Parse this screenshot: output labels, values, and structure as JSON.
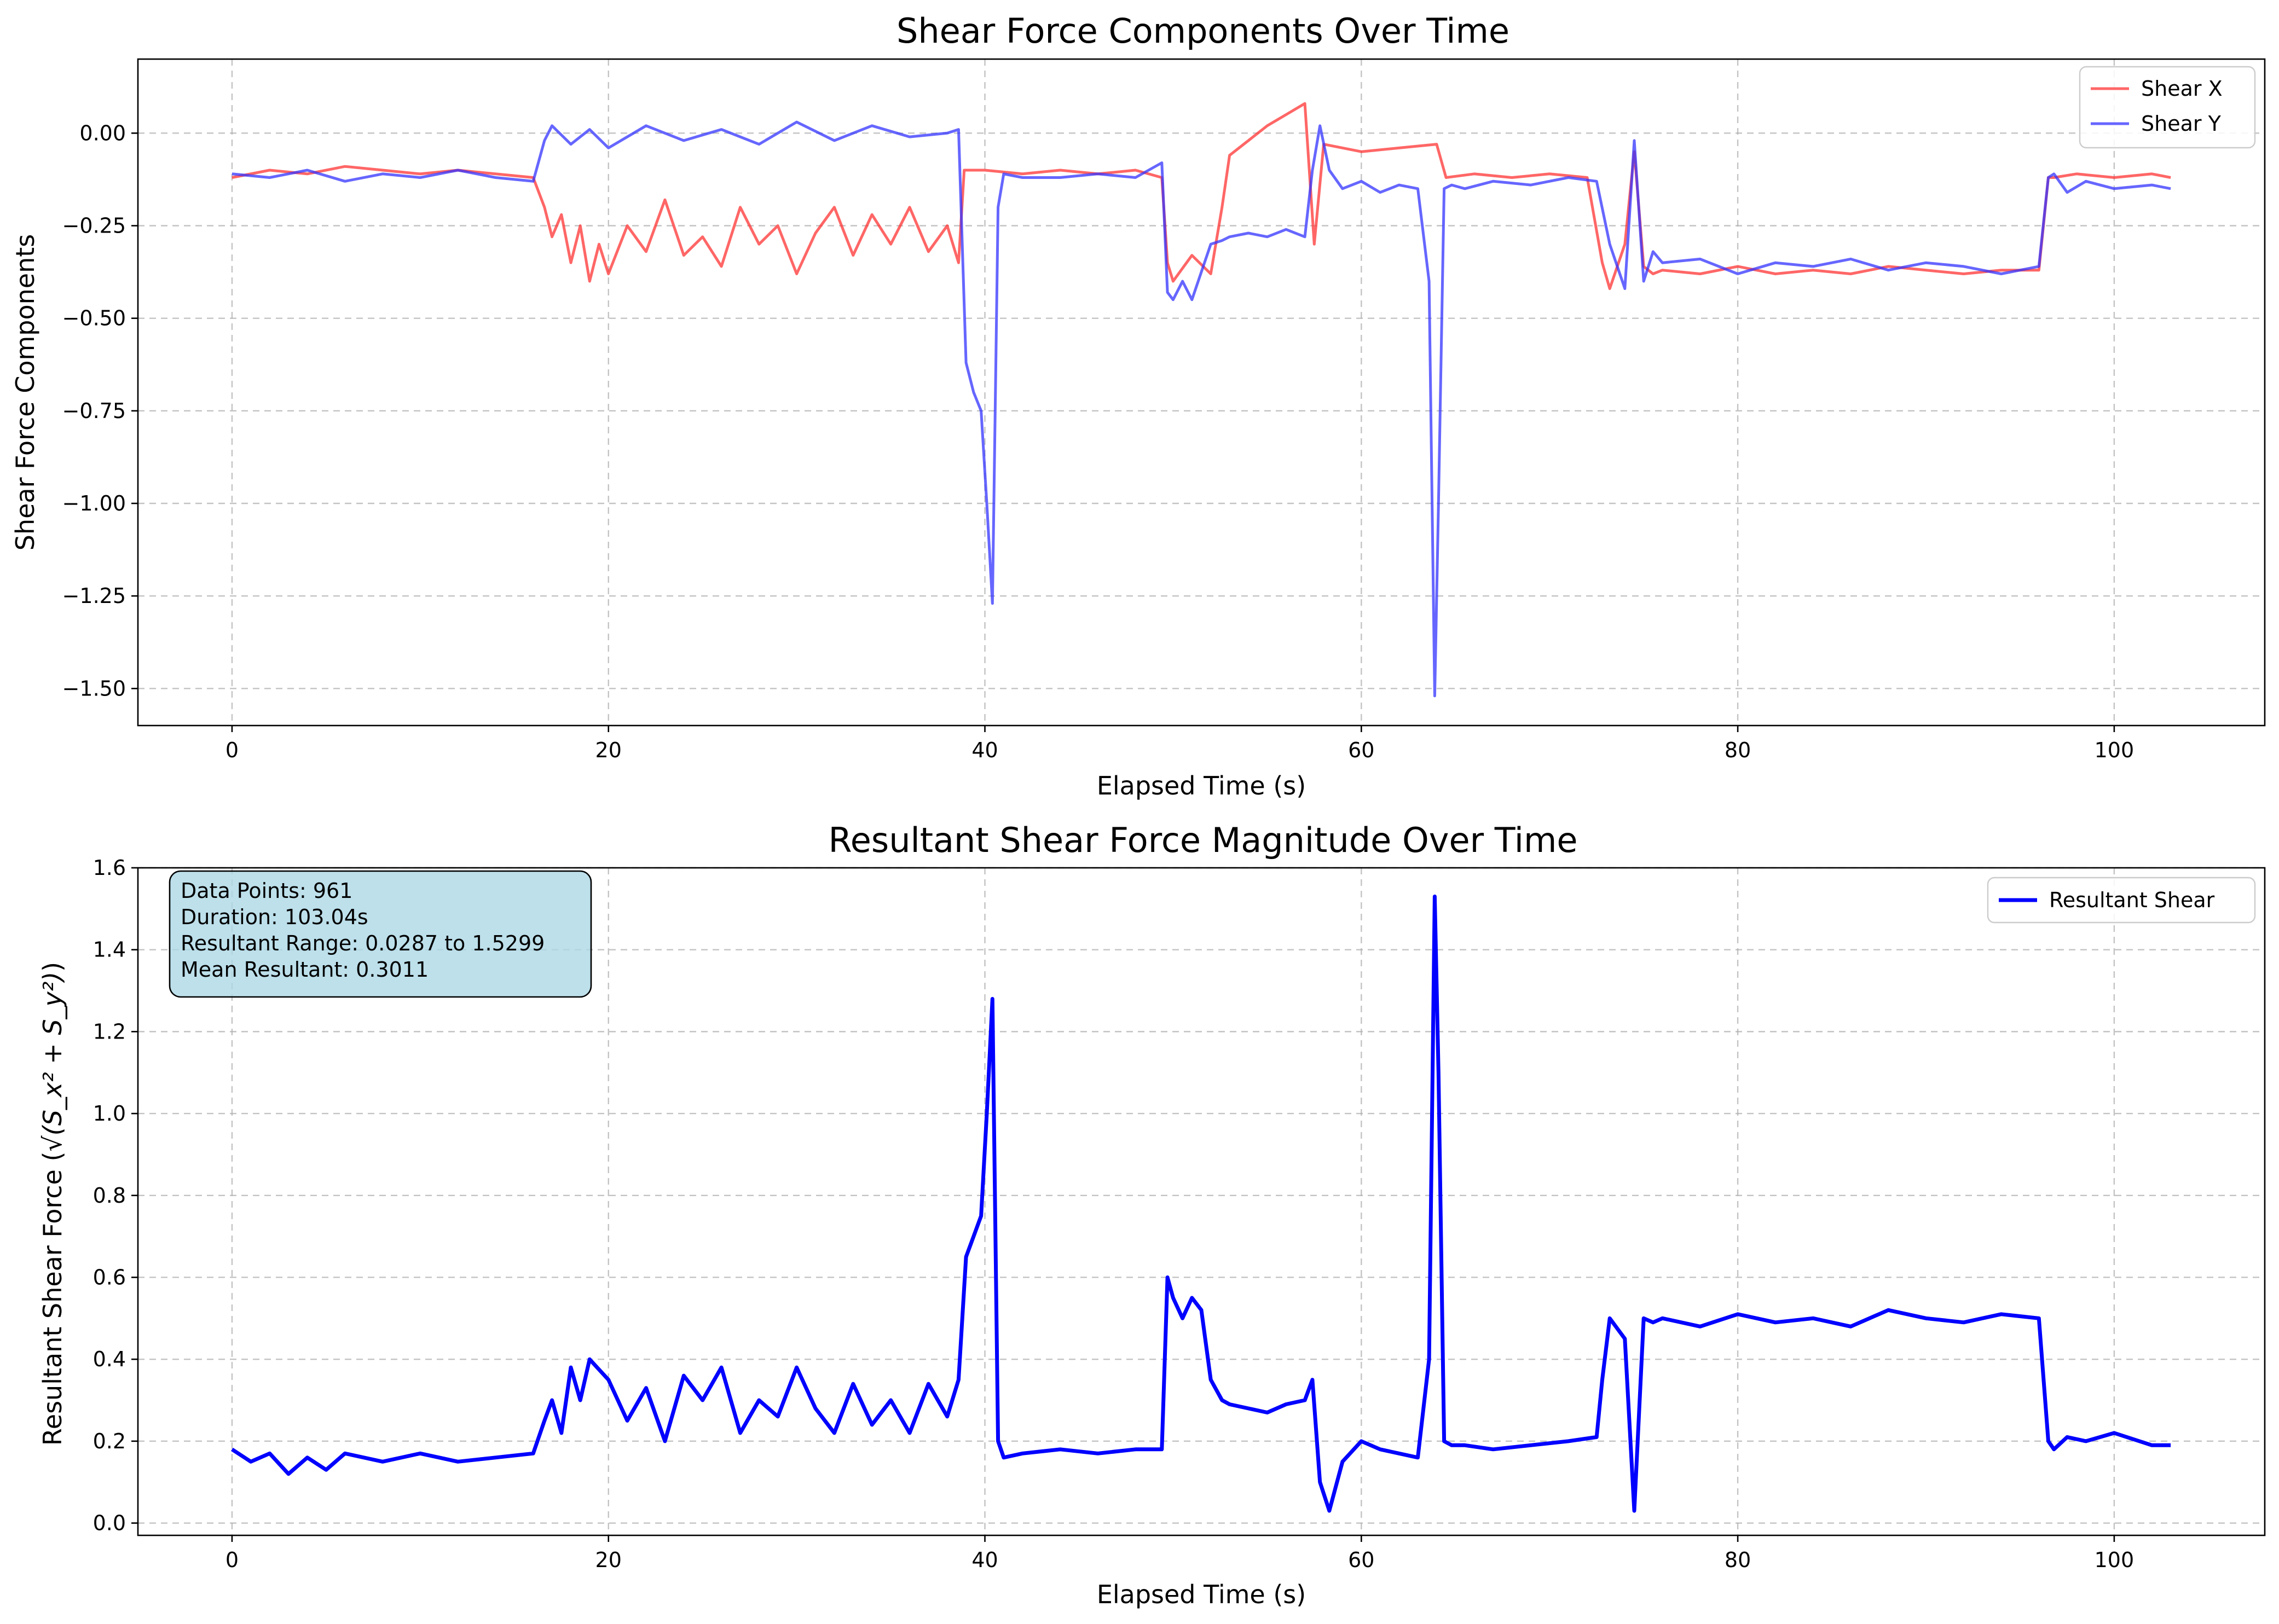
{
  "chart_data": [
    {
      "type": "line",
      "title": "Shear Force Components Over Time",
      "xlabel": "Elapsed Time (s)",
      "ylabel": "Shear Force Components",
      "xlim": [
        -5,
        108
      ],
      "ylim": [
        -1.6,
        0.2
      ],
      "xticks": [
        0,
        20,
        40,
        60,
        80,
        100
      ],
      "xtick_labels": [
        "0",
        "20",
        "40",
        "60",
        "80",
        "100"
      ],
      "yticks": [
        0.0,
        -0.25,
        -0.5,
        -0.75,
        -1.0,
        -1.25,
        -1.5
      ],
      "ytick_labels": [
        "0.00",
        "−0.25",
        "−0.50",
        "−0.75",
        "−1.00",
        "−1.25",
        "−1.50"
      ],
      "grid": true,
      "legend_position": "top-right",
      "series": [
        {
          "name": "Shear X",
          "color": "#ff3333",
          "x": [
            0,
            2,
            4,
            6,
            8,
            10,
            12,
            14,
            16,
            16.6,
            17,
            17.5,
            18,
            18.5,
            19,
            19.5,
            20,
            21,
            22,
            23,
            24,
            25,
            26,
            27,
            28,
            29,
            30,
            31,
            32,
            33,
            34,
            35,
            36,
            37,
            38,
            38.6,
            38.9,
            40,
            42,
            44,
            46,
            48,
            49.4,
            49.7,
            50,
            51,
            52,
            52.6,
            53,
            54,
            55,
            56,
            57,
            57.5,
            58,
            60,
            62,
            64,
            64.5,
            66,
            68,
            70,
            72,
            72.8,
            73.2,
            74,
            74.5,
            75,
            75.5,
            76,
            78,
            80,
            82,
            84,
            86,
            88,
            90,
            92,
            94,
            96,
            96.5,
            96.8,
            98,
            100,
            102,
            103
          ],
          "y": [
            -0.12,
            -0.1,
            -0.11,
            -0.09,
            -0.1,
            -0.11,
            -0.1,
            -0.11,
            -0.12,
            -0.2,
            -0.28,
            -0.22,
            -0.35,
            -0.25,
            -0.4,
            -0.3,
            -0.38,
            -0.25,
            -0.32,
            -0.18,
            -0.33,
            -0.28,
            -0.36,
            -0.2,
            -0.3,
            -0.25,
            -0.38,
            -0.27,
            -0.2,
            -0.33,
            -0.22,
            -0.3,
            -0.2,
            -0.32,
            -0.25,
            -0.35,
            -0.1,
            -0.1,
            -0.11,
            -0.1,
            -0.11,
            -0.1,
            -0.12,
            -0.35,
            -0.4,
            -0.33,
            -0.38,
            -0.2,
            -0.06,
            -0.02,
            0.02,
            0.05,
            0.08,
            -0.3,
            -0.03,
            -0.05,
            -0.04,
            -0.03,
            -0.12,
            -0.11,
            -0.12,
            -0.11,
            -0.12,
            -0.35,
            -0.42,
            -0.3,
            -0.05,
            -0.36,
            -0.38,
            -0.37,
            -0.38,
            -0.36,
            -0.38,
            -0.37,
            -0.38,
            -0.36,
            -0.37,
            -0.38,
            -0.37,
            -0.37,
            -0.12,
            -0.12,
            -0.11,
            -0.12,
            -0.11,
            -0.12
          ]
        },
        {
          "name": "Shear Y",
          "color": "#3333ff",
          "x": [
            0,
            2,
            4,
            6,
            8,
            10,
            12,
            14,
            16,
            16.6,
            17,
            18,
            19,
            20,
            22,
            24,
            26,
            28,
            30,
            32,
            34,
            36,
            38,
            38.6,
            39,
            39.4,
            39.8,
            40.1,
            40.4,
            40.7,
            41,
            42,
            44,
            46,
            48,
            49.4,
            49.7,
            50,
            50.5,
            51,
            52,
            52.6,
            53,
            54,
            55,
            56,
            57,
            57.4,
            57.8,
            58.3,
            59,
            60,
            61,
            62,
            63,
            63.6,
            63.9,
            64.1,
            64.4,
            64.8,
            65.5,
            67,
            69,
            71,
            72.5,
            73.2,
            74,
            74.5,
            75,
            75.5,
            76,
            78,
            80,
            82,
            84,
            86,
            88,
            90,
            92,
            94,
            96,
            96.5,
            96.8,
            97.5,
            98.5,
            100,
            102,
            103
          ],
          "y": [
            -0.11,
            -0.12,
            -0.1,
            -0.13,
            -0.11,
            -0.12,
            -0.1,
            -0.12,
            -0.13,
            -0.02,
            0.02,
            -0.03,
            0.01,
            -0.04,
            0.02,
            -0.02,
            0.01,
            -0.03,
            0.03,
            -0.02,
            0.02,
            -0.01,
            0.0,
            0.01,
            -0.62,
            -0.7,
            -0.75,
            -1.0,
            -1.27,
            -0.2,
            -0.11,
            -0.12,
            -0.12,
            -0.11,
            -0.12,
            -0.08,
            -0.43,
            -0.45,
            -0.4,
            -0.45,
            -0.3,
            -0.29,
            -0.28,
            -0.27,
            -0.28,
            -0.26,
            -0.28,
            -0.1,
            0.02,
            -0.1,
            -0.15,
            -0.13,
            -0.16,
            -0.14,
            -0.15,
            -0.4,
            -1.52,
            -1.0,
            -0.15,
            -0.14,
            -0.15,
            -0.13,
            -0.14,
            -0.12,
            -0.13,
            -0.3,
            -0.42,
            -0.02,
            -0.4,
            -0.32,
            -0.35,
            -0.34,
            -0.38,
            -0.35,
            -0.36,
            -0.34,
            -0.37,
            -0.35,
            -0.36,
            -0.38,
            -0.36,
            -0.12,
            -0.11,
            -0.16,
            -0.13,
            -0.15,
            -0.14,
            -0.15
          ]
        }
      ]
    },
    {
      "type": "line",
      "title": "Resultant Shear Force Magnitude Over Time",
      "xlabel": "Elapsed Time (s)",
      "ylabel_prefix": "Resultant Shear Force (",
      "ylabel_math": "√(S_x² + S_y²)",
      "ylabel_suffix": ")",
      "xlim": [
        -5,
        108
      ],
      "ylim": [
        -0.03,
        1.6
      ],
      "xticks": [
        0,
        20,
        40,
        60,
        80,
        100
      ],
      "xtick_labels": [
        "0",
        "20",
        "40",
        "60",
        "80",
        "100"
      ],
      "yticks": [
        0.0,
        0.2,
        0.4,
        0.6,
        0.8,
        1.0,
        1.2,
        1.4,
        1.6
      ],
      "ytick_labels": [
        "0.0",
        "0.2",
        "0.4",
        "0.6",
        "0.8",
        "1.0",
        "1.2",
        "1.4",
        "1.6"
      ],
      "grid": true,
      "legend_position": "top-right",
      "stats_box": {
        "lines": [
          "Data Points: 961",
          "Duration: 103.04s",
          "Resultant Range: 0.0287 to 1.5299",
          "Mean Resultant: 0.3011"
        ],
        "background": "#add8e6"
      },
      "series": [
        {
          "name": "Resultant Shear",
          "color": "#0000ff",
          "x": [
            0,
            1,
            2,
            3,
            4,
            5,
            6,
            8,
            10,
            12,
            14,
            16,
            16.6,
            17,
            17.5,
            18,
            18.5,
            19,
            20,
            21,
            22,
            23,
            24,
            25,
            26,
            27,
            28,
            29,
            30,
            31,
            32,
            33,
            34,
            35,
            36,
            37,
            38,
            38.6,
            39,
            39.4,
            39.8,
            40.1,
            40.4,
            40.7,
            41,
            42,
            44,
            46,
            48,
            49.4,
            49.7,
            50,
            50.5,
            51,
            51.5,
            52,
            52.6,
            53,
            54,
            55,
            56,
            57,
            57.4,
            57.8,
            58.3,
            59,
            60,
            61,
            62,
            63,
            63.6,
            63.9,
            64.1,
            64.4,
            64.8,
            65.5,
            67,
            69,
            71,
            72.5,
            72.8,
            73.2,
            74,
            74.5,
            75,
            75.5,
            76,
            78,
            80,
            82,
            84,
            86,
            88,
            90,
            92,
            94,
            96,
            96.5,
            96.8,
            97.5,
            98.5,
            100,
            102,
            103
          ],
          "y": [
            0.18,
            0.15,
            0.17,
            0.12,
            0.16,
            0.13,
            0.17,
            0.15,
            0.17,
            0.15,
            0.16,
            0.17,
            0.25,
            0.3,
            0.22,
            0.38,
            0.3,
            0.4,
            0.35,
            0.25,
            0.33,
            0.2,
            0.36,
            0.3,
            0.38,
            0.22,
            0.3,
            0.26,
            0.38,
            0.28,
            0.22,
            0.34,
            0.24,
            0.3,
            0.22,
            0.34,
            0.26,
            0.35,
            0.65,
            0.7,
            0.75,
            1.0,
            1.28,
            0.2,
            0.16,
            0.17,
            0.18,
            0.17,
            0.18,
            0.18,
            0.6,
            0.55,
            0.5,
            0.55,
            0.52,
            0.35,
            0.3,
            0.29,
            0.28,
            0.27,
            0.29,
            0.3,
            0.35,
            0.1,
            0.03,
            0.15,
            0.2,
            0.18,
            0.17,
            0.16,
            0.4,
            1.53,
            1.1,
            0.2,
            0.19,
            0.19,
            0.18,
            0.19,
            0.2,
            0.21,
            0.35,
            0.5,
            0.45,
            0.03,
            0.5,
            0.49,
            0.5,
            0.48,
            0.51,
            0.49,
            0.5,
            0.48,
            0.52,
            0.5,
            0.49,
            0.51,
            0.5,
            0.2,
            0.18,
            0.21,
            0.2,
            0.22,
            0.19,
            0.19
          ]
        }
      ]
    }
  ]
}
